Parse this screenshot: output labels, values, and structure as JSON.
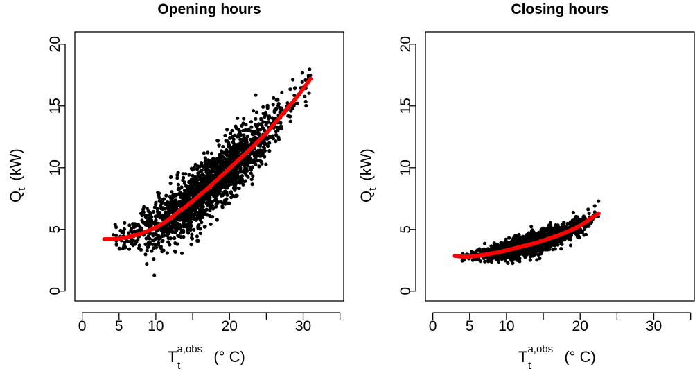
{
  "chart_data": [
    {
      "type": "scatter",
      "title": "Opening hours",
      "xlabel": {
        "main": "T",
        "sub": "t",
        "sup": "a,obs",
        "unit": "(° C)"
      },
      "ylabel": {
        "main": "Q",
        "sub": "t",
        "unit": "(kW)"
      },
      "xlim": [
        -1,
        35.5
      ],
      "ylim": [
        -0.8,
        21
      ],
      "xticks": [
        0,
        5,
        10,
        20,
        30
      ],
      "xtick_labels": [
        "0",
        "5",
        "10",
        "20",
        "30"
      ],
      "xtick_marks": [
        0,
        5,
        10,
        15,
        20,
        25,
        30,
        35
      ],
      "yticks": [
        0,
        5,
        10,
        15,
        20
      ],
      "ytick_labels": [
        "0",
        "5",
        "10",
        "15",
        "20"
      ],
      "grid": false,
      "series": [
        {
          "kind": "points",
          "color": "#000000",
          "x_range": [
            4,
            31
          ],
          "fit_x": [
            3,
            5,
            7,
            9,
            11,
            13,
            15,
            17,
            19,
            21,
            23,
            25,
            27,
            29,
            31
          ],
          "fit_y": [
            4.2,
            4.25,
            4.5,
            4.9,
            5.5,
            6.4,
            7.3,
            8.3,
            9.4,
            10.5,
            11.6,
            12.8,
            14.2,
            15.6,
            17.2
          ],
          "spread": [
            0.5,
            0.6,
            0.8,
            1.0,
            1.1,
            1.2,
            1.2,
            1.2,
            1.2,
            1.2,
            1.2,
            1.1,
            1.0,
            1.0,
            0.8
          ],
          "n": 1900
        },
        {
          "kind": "fit",
          "color": "#ff0000",
          "x": [
            3,
            4,
            5,
            6,
            7,
            8,
            9,
            10,
            11,
            12,
            13,
            14,
            15,
            16,
            17,
            18,
            19,
            20,
            21,
            22,
            23,
            24,
            25,
            26,
            27,
            28,
            29,
            30,
            31
          ],
          "y": [
            4.2,
            4.2,
            4.25,
            4.35,
            4.5,
            4.65,
            4.9,
            5.15,
            5.5,
            5.9,
            6.4,
            6.8,
            7.3,
            7.8,
            8.3,
            8.85,
            9.4,
            9.95,
            10.5,
            11.05,
            11.6,
            12.2,
            12.8,
            13.5,
            14.2,
            14.9,
            15.6,
            16.4,
            17.2
          ]
        }
      ]
    },
    {
      "type": "scatter",
      "title": "Closing hours",
      "xlabel": {
        "main": "T",
        "sub": "t",
        "sup": "a,obs",
        "unit": "(° C)"
      },
      "ylabel": {
        "main": "Q",
        "sub": "t",
        "unit": "(kW)"
      },
      "xlim": [
        -1,
        35.5
      ],
      "ylim": [
        -0.8,
        21
      ],
      "xticks": [
        0,
        5,
        10,
        20,
        30
      ],
      "xtick_labels": [
        "0",
        "5",
        "10",
        "20",
        "30"
      ],
      "xtick_marks": [
        0,
        5,
        10,
        15,
        20,
        25,
        30,
        35
      ],
      "yticks": [
        0,
        5,
        10,
        15,
        20
      ],
      "ytick_labels": [
        "0",
        "5",
        "10",
        "15",
        "20"
      ],
      "grid": false,
      "series": [
        {
          "kind": "points",
          "color": "#000000",
          "x_range": [
            4,
            22.5
          ],
          "fit_x": [
            3,
            5,
            7,
            9,
            11,
            13,
            15,
            17,
            19,
            21,
            22.5
          ],
          "fit_y": [
            2.85,
            2.8,
            2.95,
            3.15,
            3.45,
            3.75,
            4.1,
            4.5,
            5.0,
            5.7,
            6.3
          ],
          "spread": [
            0.2,
            0.25,
            0.3,
            0.35,
            0.4,
            0.45,
            0.4,
            0.4,
            0.4,
            0.45,
            0.4
          ],
          "n": 1600
        },
        {
          "kind": "fit",
          "color": "#ff0000",
          "x": [
            3,
            4,
            5,
            6,
            7,
            8,
            9,
            10,
            11,
            12,
            13,
            14,
            15,
            16,
            17,
            18,
            19,
            20,
            21,
            22,
            22.5
          ],
          "y": [
            2.85,
            2.8,
            2.8,
            2.85,
            2.95,
            3.05,
            3.15,
            3.3,
            3.45,
            3.6,
            3.75,
            3.9,
            4.1,
            4.3,
            4.5,
            4.75,
            5.0,
            5.3,
            5.7,
            6.1,
            6.3
          ]
        }
      ]
    }
  ]
}
